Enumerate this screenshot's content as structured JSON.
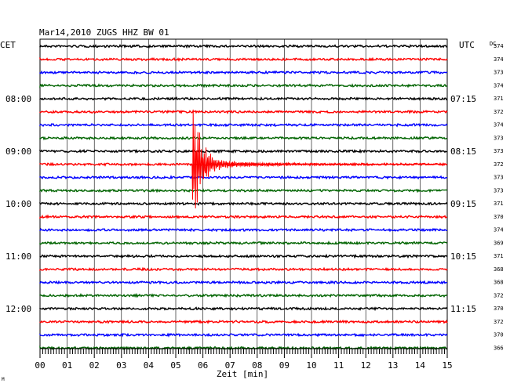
{
  "chart_data": {
    "type": "line",
    "title": "Mar14,2010   ZUGS HHZ BW 01",
    "left_timezone": "CET",
    "right_timezone": "UTC",
    "dc_label": "DC",
    "xlabel": "Zeit [min]",
    "xlim": [
      0,
      15
    ],
    "x_ticks": [
      "00",
      "01",
      "02",
      "03",
      "04",
      "05",
      "06",
      "07",
      "08",
      "09",
      "10",
      "11",
      "12",
      "13",
      "14",
      "15"
    ],
    "trace_colors": [
      "#000000",
      "#ff0000",
      "#0000ff",
      "#006400"
    ],
    "left_hour_labels": [
      {
        "trace": 4,
        "label": "08:00"
      },
      {
        "trace": 8,
        "label": "09:00"
      },
      {
        "trace": 12,
        "label": "10:00"
      },
      {
        "trace": 16,
        "label": "11:00"
      },
      {
        "trace": 20,
        "label": "12:00"
      }
    ],
    "right_hour_labels": [
      {
        "trace": 4,
        "label": "07:15"
      },
      {
        "trace": 8,
        "label": "08:15"
      },
      {
        "trace": 12,
        "label": "09:15"
      },
      {
        "trace": 16,
        "label": "10:15"
      },
      {
        "trace": 20,
        "label": "11:15"
      }
    ],
    "dc_offsets": [
      374,
      374,
      373,
      374,
      371,
      372,
      374,
      373,
      373,
      372,
      373,
      373,
      371,
      370,
      374,
      369,
      371,
      368,
      368,
      372,
      370,
      372,
      370,
      366
    ],
    "event": {
      "trace": 9,
      "onset_min": 5.6,
      "description": ""
    },
    "grid": true,
    "small_mark": "M"
  }
}
